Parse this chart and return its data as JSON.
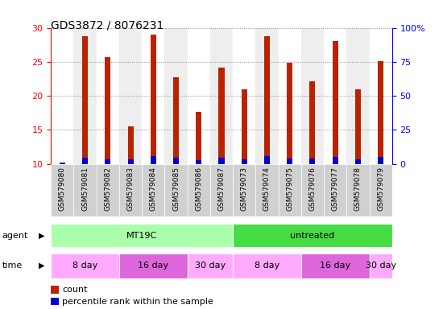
{
  "title": "GDS3872 / 8076231",
  "samples": [
    "GSM579080",
    "GSM579081",
    "GSM579082",
    "GSM579083",
    "GSM579084",
    "GSM579085",
    "GSM579086",
    "GSM579087",
    "GSM579073",
    "GSM579074",
    "GSM579075",
    "GSM579076",
    "GSM579077",
    "GSM579078",
    "GSM579079"
  ],
  "counts": [
    10.2,
    28.8,
    25.7,
    15.5,
    29.0,
    22.7,
    17.6,
    24.2,
    20.9,
    28.8,
    24.8,
    22.1,
    28.0,
    21.0,
    25.1
  ],
  "percentile_ranks": [
    1.0,
    4.5,
    3.5,
    3.0,
    5.5,
    4.5,
    2.5,
    4.5,
    3.5,
    5.5,
    4.0,
    4.0,
    5.0,
    3.5,
    5.0
  ],
  "bar_color_red": "#bb2200",
  "bar_color_blue": "#0000cc",
  "bar_width": 0.25,
  "ylim_left": [
    10,
    30
  ],
  "ylim_right": [
    0,
    100
  ],
  "yticks_left": [
    10,
    15,
    20,
    25,
    30
  ],
  "yticks_right": [
    0,
    25,
    50,
    75,
    100
  ],
  "ytick_labels_right": [
    "0",
    "25",
    "50",
    "75",
    "100%"
  ],
  "bg_white": "#ffffff",
  "bg_gray": "#d8d8d8",
  "agent_color_mt19c": "#aaffaa",
  "agent_color_untreated": "#44dd44",
  "time_color_light": "#ffaaff",
  "time_color_dark": "#dd66dd",
  "agent_groups": [
    {
      "text": "MT19C",
      "start": 0,
      "end": 8
    },
    {
      "text": "untreated",
      "start": 8,
      "end": 15
    }
  ],
  "time_groups": [
    {
      "text": "8 day",
      "start": 0,
      "end": 3,
      "dark": false
    },
    {
      "text": "16 day",
      "start": 3,
      "end": 6,
      "dark": true
    },
    {
      "text": "30 day",
      "start": 6,
      "end": 8,
      "dark": false
    },
    {
      "text": "8 day",
      "start": 8,
      "end": 11,
      "dark": false
    },
    {
      "text": "16 day",
      "start": 11,
      "end": 14,
      "dark": true
    },
    {
      "text": "30 day",
      "start": 14,
      "end": 15,
      "dark": false
    }
  ],
  "legend": [
    {
      "label": "count",
      "color": "#bb2200"
    },
    {
      "label": "percentile rank within the sample",
      "color": "#0000cc"
    }
  ]
}
